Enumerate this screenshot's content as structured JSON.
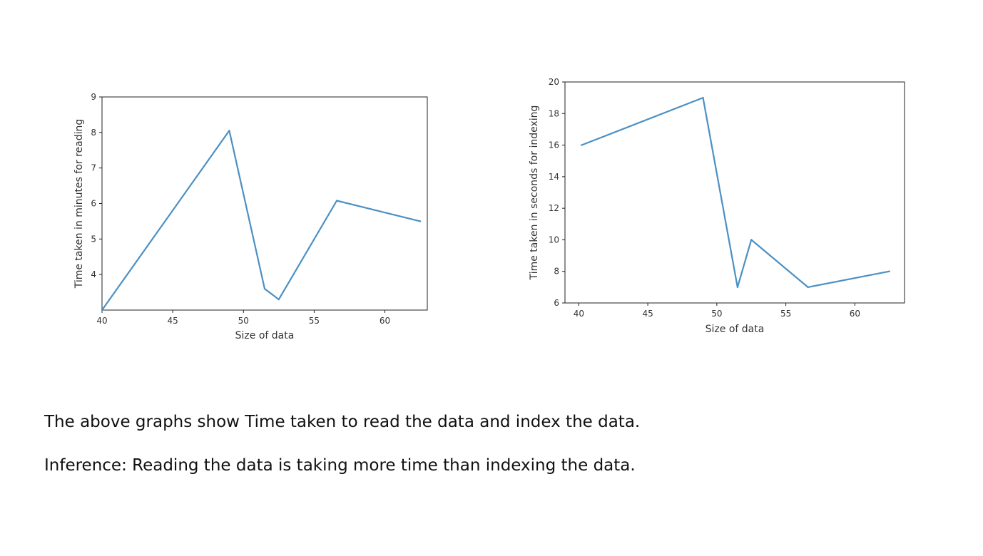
{
  "chart_data": [
    {
      "type": "line",
      "xlabel": "Size of data",
      "ylabel": "Time taken in minutes for reading",
      "xlim": [
        40,
        63
      ],
      "ylim": [
        3,
        9
      ],
      "xticks": [
        "40",
        "45",
        "50",
        "55",
        "60"
      ],
      "yticks": [
        "4",
        "5",
        "6",
        "7",
        "8",
        "9"
      ],
      "series": [
        {
          "color": "#4a90c4",
          "x": [
            40.0,
            49.0,
            51.5,
            52.5,
            56.6,
            62.5
          ],
          "y": [
            3.0,
            8.05,
            3.6,
            3.3,
            6.08,
            5.5
          ]
        }
      ]
    },
    {
      "type": "line",
      "xlabel": "Size of data",
      "ylabel": "Time taken in seconds for indexing",
      "xlim": [
        39,
        63.6
      ],
      "ylim": [
        6,
        20
      ],
      "xticks": [
        "40",
        "45",
        "50",
        "55",
        "60"
      ],
      "yticks": [
        "6",
        "8",
        "10",
        "12",
        "14",
        "16",
        "18",
        "20"
      ],
      "series": [
        {
          "color": "#4a90c4",
          "x": [
            40.2,
            49.0,
            51.5,
            52.5,
            56.6,
            62.5
          ],
          "y": [
            16.0,
            19.0,
            7.0,
            10.0,
            7.0,
            8.0
          ]
        }
      ]
    }
  ],
  "text": {
    "caption_1": "The above graphs show Time taken to read the data and index the data.",
    "caption_2": "Inference: Reading the data is taking more time than indexing the data."
  }
}
